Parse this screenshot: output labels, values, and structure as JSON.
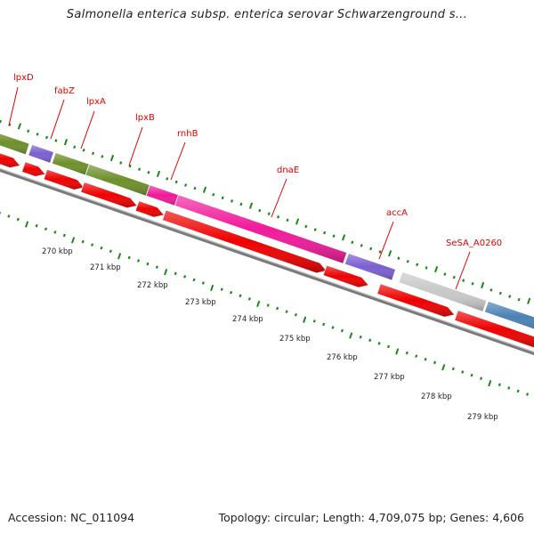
{
  "title": "Salmonella enterica subsp. enterica serovar Schwarzenground s...",
  "footer": {
    "accession": "Accession: NC_011094",
    "topology": "Topology: circular; Length: 4,709,075 bp; Genes: 4,606"
  },
  "colors": {
    "gene_label": "#e00000",
    "forward_cds": "#ee0000",
    "tick": "#1a8a1a",
    "olive": "#6e8f2a",
    "purple": "#7b5fd0",
    "magenta": "#f01a9a",
    "grey": "#c8c8c8",
    "steelblue": "#4b82b4",
    "backbone": "#7a7a7a"
  },
  "genes": [
    {
      "label": "lpxD",
      "color": "olive"
    },
    {
      "label": "fabZ",
      "color": "purple"
    },
    {
      "label": "lpxA",
      "color": "olive"
    },
    {
      "label": "lpxB",
      "color": "olive"
    },
    {
      "label": "rnhB",
      "color": "magenta"
    },
    {
      "label": "dnaE",
      "color": "magenta"
    },
    {
      "label": "accA",
      "color": "purple"
    },
    {
      "label": "SeSA_A0260",
      "color": "grey"
    },
    {
      "label": "",
      "color": "steelblue"
    }
  ],
  "kbp_ticks": [
    "270 kbp",
    "271 kbp",
    "272 kbp",
    "273 kbp",
    "274 kbp",
    "275 kbp",
    "276 kbp",
    "277 kbp",
    "278 kbp",
    "279 kbp"
  ]
}
